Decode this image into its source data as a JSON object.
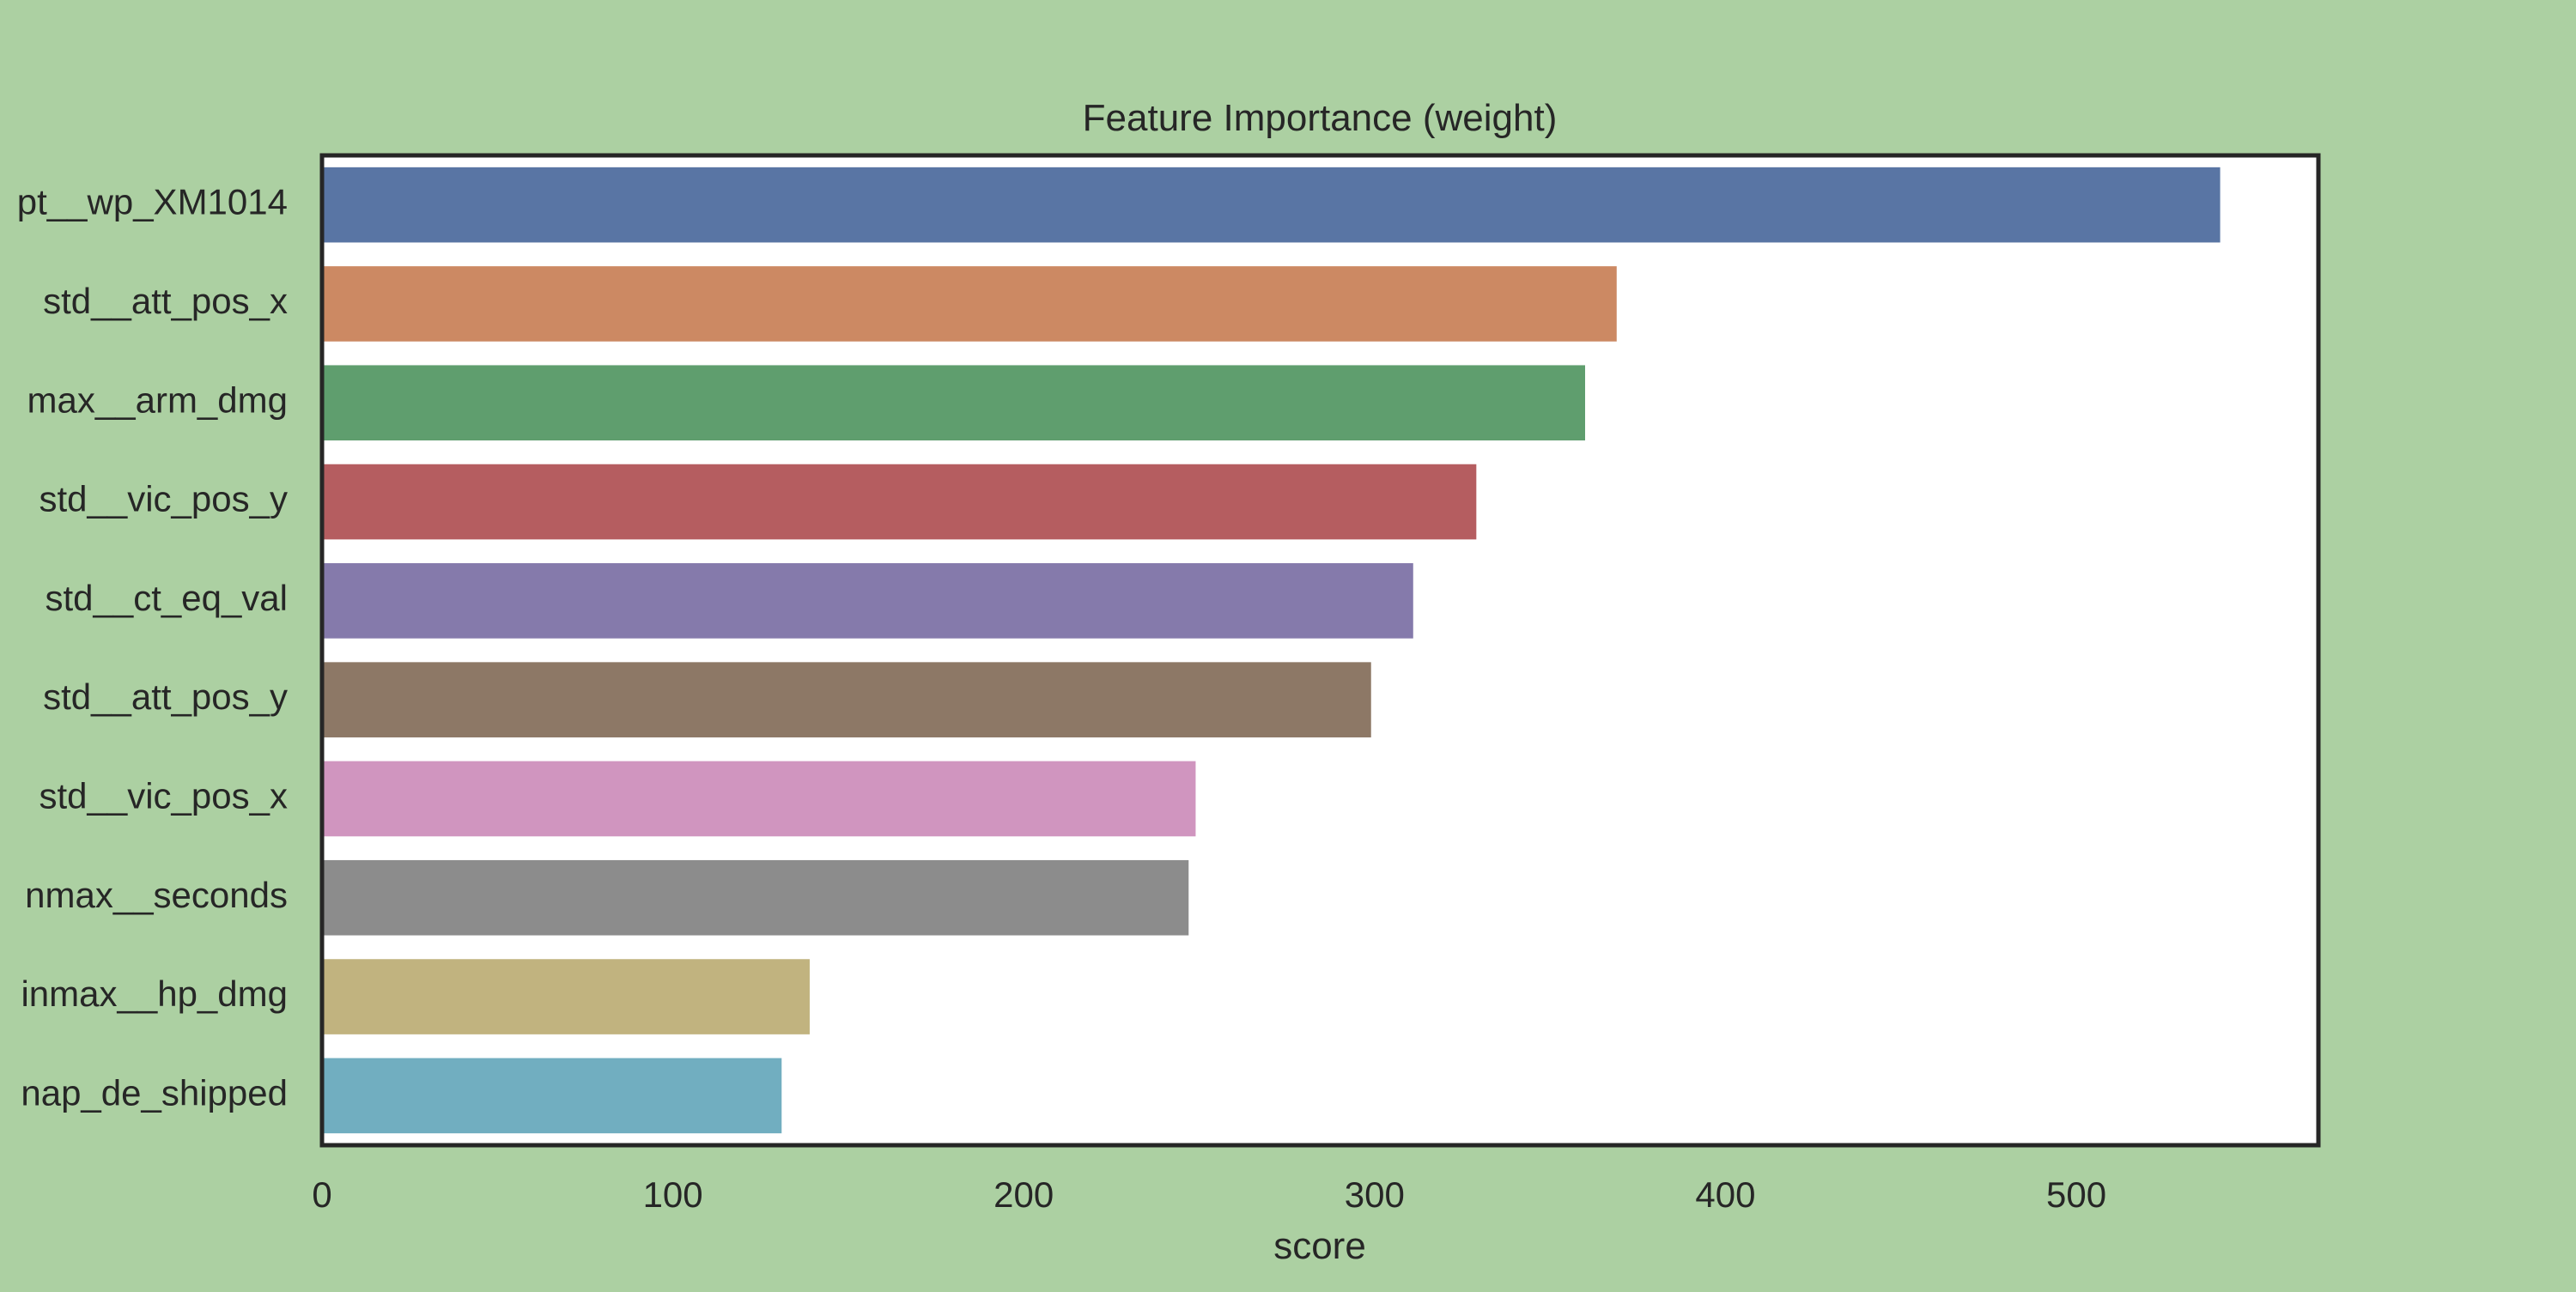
{
  "colors": {
    "figure_background": "#acd0a2",
    "plot_background": "#ffffff",
    "frame": "#262626"
  },
  "chart_data": {
    "type": "bar",
    "orientation": "horizontal",
    "title": "Feature Importance (weight)",
    "xlabel": "score",
    "ylabel": "",
    "xlim": [
      0,
      569
    ],
    "x_ticks": [
      0,
      100,
      200,
      300,
      400,
      500
    ],
    "grid": false,
    "legend": "none",
    "categories": [
      "pt__wp_XM1014",
      "std__att_pos_x",
      "max__arm_dmg",
      "std__vic_pos_y",
      "std__ct_eq_val",
      "std__att_pos_y",
      "std__vic_pos_x",
      "nmax__seconds",
      "inmax__hp_dmg",
      "nap_de_shipped"
    ],
    "values": [
      541,
      369,
      360,
      329,
      311,
      299,
      249,
      247,
      139,
      131
    ],
    "bar_colors": [
      "#5975a4",
      "#cc8963",
      "#5f9e6e",
      "#b55d60",
      "#857aab",
      "#8d7866",
      "#d095bf",
      "#8c8c8c",
      "#c1b37f",
      "#71aec0"
    ]
  }
}
